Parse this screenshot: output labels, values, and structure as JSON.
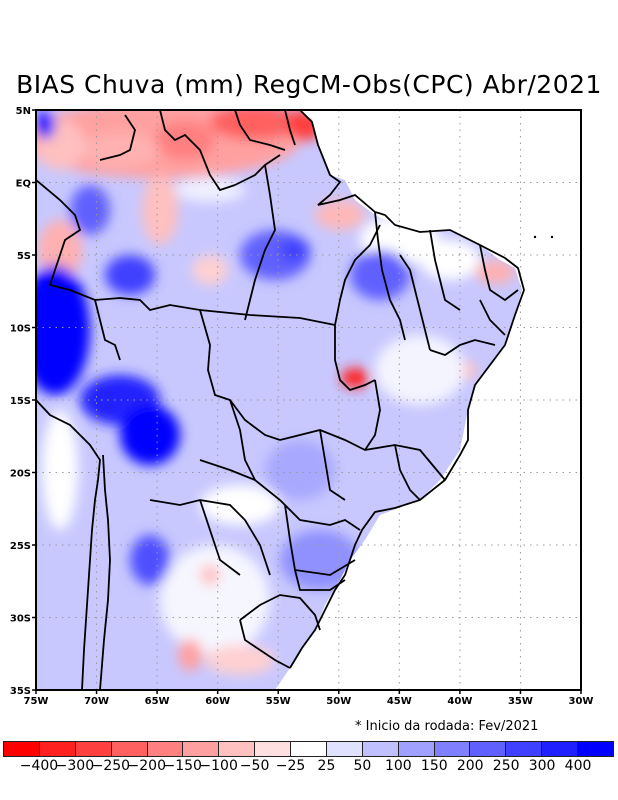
{
  "title": "BIAS Chuva (mm) RegCM-Obs(CPC) Abr/2021",
  "note": "* Inicio da rodada: Fev/2021",
  "chart_data": {
    "type": "heatmap",
    "title": "BIAS Chuva (mm) RegCM-Obs(CPC) Abr/2021",
    "variable": "Precipitation bias (mm), RegCM minus CPC observations",
    "period": "Abr/2021",
    "run_start": "Fev/2021",
    "xlabel": "",
    "ylabel": "",
    "xlim": [
      -75,
      -30
    ],
    "ylim": [
      -35,
      5
    ],
    "x_ticks": [
      "75W",
      "70W",
      "65W",
      "60W",
      "55W",
      "50W",
      "45W",
      "40W",
      "35W",
      "30W"
    ],
    "y_ticks": [
      "5N",
      "EQ",
      "5S",
      "10S",
      "15S",
      "20S",
      "25S",
      "30S",
      "35S"
    ],
    "grid": "dotted",
    "colorbar": {
      "placement": "bottom",
      "levels": [
        -400,
        -300,
        -250,
        -200,
        -150,
        -100,
        -50,
        -25,
        25,
        50,
        100,
        150,
        200,
        250,
        300,
        400
      ],
      "labels": [
        "-400",
        "-300",
        "-250",
        "-200",
        "-150",
        "-100",
        "-50",
        "-25",
        "25",
        "50",
        "100",
        "150",
        "200",
        "250",
        "300",
        "400"
      ],
      "colors": [
        "#ff0000",
        "#ff2020",
        "#ff4040",
        "#ff6060",
        "#ff8080",
        "#ffa0a0",
        "#ffc0c0",
        "#ffe0e0",
        "#ffffff",
        "#e0e0ff",
        "#c0c0ff",
        "#a0a0ff",
        "#8080ff",
        "#6060ff",
        "#4040ff",
        "#2020ff",
        "#0000ff"
      ]
    },
    "features": [
      {
        "region": "Northwest Amazon / far NW corner (~74W, 4N)",
        "bias": 400
      },
      {
        "region": "Northern Amazon, Roraima/Guianas (~55-68W, 0-5N)",
        "bias": -150
      },
      {
        "region": "Amapá coast (~52W, 4N)",
        "bias": -250
      },
      {
        "region": "Western Amazon, Peru/Acre (~73W, 10-15S)",
        "bias": 400
      },
      {
        "region": "Bolivia lowlands (~65W, 15-18S)",
        "bias": 300
      },
      {
        "region": "Central Amazon (~67W, 7S)",
        "bias": 200
      },
      {
        "region": "Bahia/Goiás border (~48W, 13S)",
        "bias": -300
      },
      {
        "region": "Rio Grande do Norte (~37W, 6S)",
        "bias": -100
      },
      {
        "region": "Northern Argentina (~66W, 27S)",
        "bias": 200
      },
      {
        "region": "Central-west Brazil / Mato Grosso (~55W, 12-20S)",
        "bias": 100
      },
      {
        "region": "Southeast Brazil (~45W, 20S)",
        "bias": 75
      },
      {
        "region": "Uruguay / Buenos Aires (~57W, 32S)",
        "bias": -50
      },
      {
        "region": "Argentina (~62W, 32S)",
        "bias": -100
      }
    ]
  }
}
